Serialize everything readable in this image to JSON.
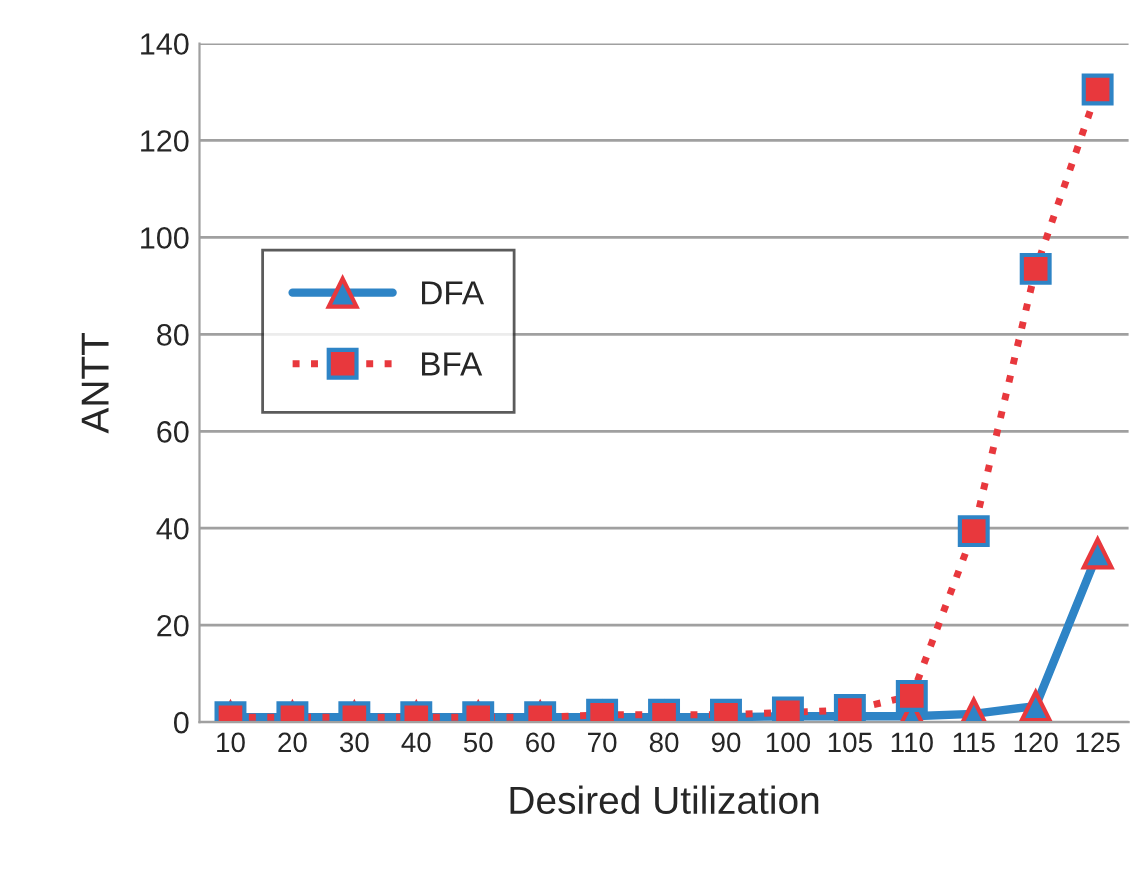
{
  "chart_data": {
    "type": "line",
    "xlabel": "Desired Utilization",
    "ylabel": "ANTT",
    "categories": [
      "10",
      "20",
      "30",
      "40",
      "50",
      "60",
      "70",
      "80",
      "90",
      "100",
      "105",
      "110",
      "115",
      "120",
      "125"
    ],
    "series": [
      {
        "name": "DFA",
        "color": "#2e84c6",
        "marker": "triangle",
        "line_style": "solid",
        "values": [
          1,
          1,
          1,
          1,
          1,
          1,
          1,
          1,
          1,
          1.2,
          1.2,
          1.2,
          1.7,
          3.3,
          34.8
        ]
      },
      {
        "name": "BFA",
        "color": "#e8383d",
        "marker": "square",
        "line_style": "dotted",
        "values": [
          1,
          1,
          1,
          1,
          1,
          1,
          1.5,
          1.5,
          1.5,
          2,
          2.5,
          5.4,
          39.4,
          93.5,
          130.5
        ]
      }
    ],
    "ylim": [
      0,
      140
    ],
    "yticks": [
      0,
      20,
      40,
      60,
      80,
      100,
      120,
      140
    ],
    "grid": "y",
    "legend": "upper left"
  }
}
